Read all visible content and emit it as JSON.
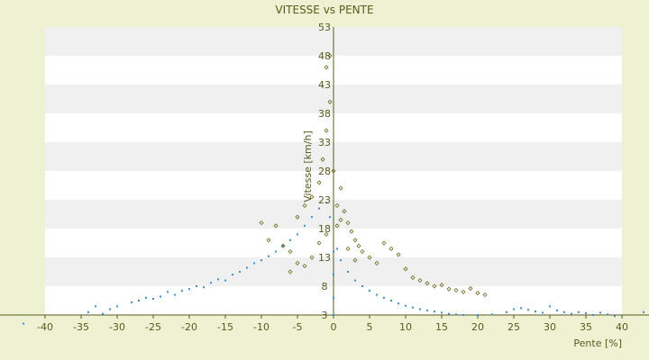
{
  "chart_data": {
    "type": "scatter",
    "title": "VITESSE vs PENTE",
    "xlabel": "Pente [%]",
    "ylabel": "Vitesse [km/h]",
    "xlim": [
      -40,
      40
    ],
    "ylim": [
      3,
      53
    ],
    "x_ticks": [
      -40,
      -35,
      -30,
      -25,
      -20,
      -15,
      -10,
      -5,
      0,
      5,
      10,
      15,
      20,
      25,
      30,
      35,
      40
    ],
    "y_ticks": [
      3,
      8,
      13,
      18,
      23,
      28,
      33,
      38,
      43,
      48,
      53
    ],
    "grid": "horizontal bands",
    "colors": {
      "page_background": "#eef2d2",
      "plot_band_light": "#ffffff",
      "plot_band_dark": "#f0f0f0",
      "axis_line": "#5a5a1e",
      "text": "#5a5a1e",
      "series_blue": "#3d8fd1",
      "series_olive": "#6b6b1e"
    },
    "series": [
      {
        "color": "#3d8fd1",
        "marker": "dot",
        "description_points": [
          [
            -43,
            1.5
          ],
          [
            -34,
            3.5
          ],
          [
            -33,
            4.5
          ],
          [
            -32,
            3.2
          ],
          [
            -31,
            4.0
          ],
          [
            -30,
            4.5
          ],
          [
            -28,
            5.2
          ],
          [
            -27,
            5.5
          ],
          [
            -26,
            6.0
          ],
          [
            -25,
            5.8
          ],
          [
            -24,
            6.2
          ],
          [
            -23,
            7.0
          ],
          [
            -22,
            6.5
          ],
          [
            -21,
            7.2
          ],
          [
            -20,
            7.5
          ],
          [
            -19,
            8.0
          ],
          [
            -18,
            7.8
          ],
          [
            -17,
            8.6
          ],
          [
            -16,
            9.2
          ],
          [
            -15,
            9.0
          ],
          [
            -14,
            10.0
          ],
          [
            -13,
            10.5
          ],
          [
            -12,
            11.2
          ],
          [
            -11,
            12.0
          ],
          [
            -10,
            12.5
          ],
          [
            -9,
            13.2
          ],
          [
            -8,
            14.0
          ],
          [
            -7,
            15.0
          ],
          [
            -6,
            16.0
          ],
          [
            -5,
            17.0
          ],
          [
            -4,
            18.5
          ],
          [
            -3,
            20.0
          ],
          [
            -2,
            21.5
          ],
          [
            -1,
            22.5
          ],
          [
            -0.5,
            20.0
          ],
          [
            0,
            14.0
          ],
          [
            0,
            10.0
          ],
          [
            0,
            6.0
          ],
          [
            0,
            3.0
          ],
          [
            0.5,
            14.5
          ],
          [
            1,
            12.5
          ],
          [
            2,
            10.5
          ],
          [
            3,
            9.0
          ],
          [
            4,
            8.0
          ],
          [
            5,
            7.2
          ],
          [
            6,
            6.5
          ],
          [
            7,
            6.0
          ],
          [
            8,
            5.5
          ],
          [
            9,
            5.0
          ],
          [
            10,
            4.6
          ],
          [
            11,
            4.3
          ],
          [
            12,
            4.0
          ],
          [
            13,
            3.8
          ],
          [
            14,
            3.6
          ],
          [
            15,
            3.4
          ],
          [
            16,
            3.2
          ],
          [
            17,
            3.1
          ],
          [
            18,
            3.0
          ],
          [
            20,
            3.0
          ],
          [
            22,
            3.1
          ],
          [
            24,
            3.5
          ],
          [
            25,
            4.0
          ],
          [
            26,
            4.2
          ],
          [
            27,
            3.9
          ],
          [
            28,
            3.6
          ],
          [
            29,
            3.4
          ],
          [
            30,
            4.5
          ],
          [
            31,
            3.8
          ],
          [
            32,
            3.5
          ],
          [
            33,
            3.2
          ],
          [
            34,
            3.5
          ],
          [
            35,
            3.3
          ],
          [
            36,
            3.0
          ],
          [
            37,
            3.4
          ],
          [
            38,
            3.1
          ],
          [
            39,
            2.8
          ],
          [
            43,
            3.5
          ],
          [
            44,
            2.3
          ]
        ]
      },
      {
        "color": "#6b6b1e",
        "marker": "diamond",
        "description_points": [
          [
            -10,
            19.0
          ],
          [
            -9,
            16.0
          ],
          [
            -8,
            18.5
          ],
          [
            -7,
            15.0
          ],
          [
            -6,
            14.0
          ],
          [
            -5,
            20.0
          ],
          [
            -4,
            22.0
          ],
          [
            -3,
            23.5
          ],
          [
            -2,
            26.0
          ],
          [
            -1.5,
            30.0
          ],
          [
            -1,
            35.0
          ],
          [
            -0.5,
            40.0
          ],
          [
            -1,
            46.0
          ],
          [
            -0.5,
            48.0
          ],
          [
            0,
            28.0
          ],
          [
            0.5,
            22.0
          ],
          [
            1,
            25.0
          ],
          [
            1.5,
            21.0
          ],
          [
            2,
            19.0
          ],
          [
            2.5,
            17.5
          ],
          [
            3,
            16.0
          ],
          [
            3.5,
            15.0
          ],
          [
            4,
            14.0
          ],
          [
            5,
            13.0
          ],
          [
            6,
            12.0
          ],
          [
            7,
            15.5
          ],
          [
            8,
            14.5
          ],
          [
            9,
            13.5
          ],
          [
            10,
            11.0
          ],
          [
            11,
            9.5
          ],
          [
            12,
            9.0
          ],
          [
            13,
            8.5
          ],
          [
            14,
            8.0
          ],
          [
            15,
            8.2
          ],
          [
            16,
            7.5
          ],
          [
            17,
            7.3
          ],
          [
            18,
            7.0
          ],
          [
            19,
            7.6
          ],
          [
            20,
            6.8
          ],
          [
            21,
            6.5
          ],
          [
            -5,
            12.0
          ],
          [
            -6,
            10.5
          ],
          [
            -4,
            11.5
          ],
          [
            -3,
            13.0
          ],
          [
            -2,
            15.5
          ],
          [
            -1,
            17.0
          ],
          [
            0.5,
            18.5
          ],
          [
            1,
            19.5
          ],
          [
            2,
            14.5
          ],
          [
            3,
            12.5
          ]
        ]
      }
    ]
  }
}
